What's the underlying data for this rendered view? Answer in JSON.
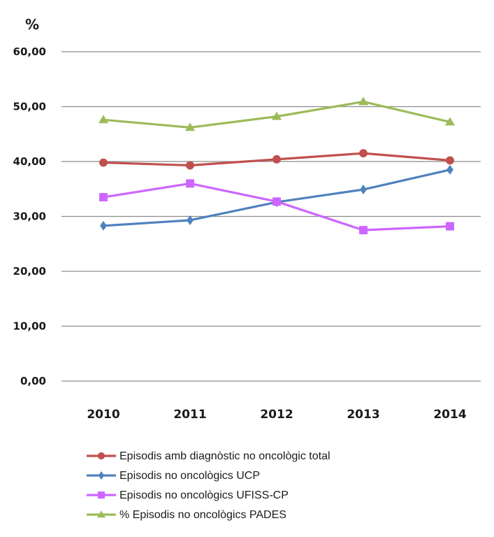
{
  "chart_data": {
    "type": "line",
    "ylabel": "%",
    "ylim": [
      0,
      60
    ],
    "y_ticks": [
      "0,00",
      "10,00",
      "20,00",
      "30,00",
      "40,00",
      "50,00",
      "60,00"
    ],
    "categories": [
      "2010",
      "2011",
      "2012",
      "2013",
      "2014"
    ],
    "grid": true,
    "legend_position": "bottom",
    "series": [
      {
        "name": "Episodis amb diagnòstic no oncològic total",
        "color": "#c0504d",
        "marker": "circle",
        "values": [
          39.8,
          39.3,
          40.4,
          41.5,
          40.2
        ]
      },
      {
        "name": "Episodis no oncològics UCP",
        "color": "#4f81bd",
        "marker": "diamond",
        "values": [
          28.3,
          29.3,
          32.6,
          34.9,
          38.5
        ]
      },
      {
        "name": "Episodis no oncològics UFISS-CP",
        "color": "#cc66ff",
        "marker": "square",
        "values": [
          33.5,
          36.0,
          32.7,
          27.5,
          28.2
        ]
      },
      {
        "name": "% Episodis no oncològics PADES",
        "color": "#9bbb59",
        "marker": "triangle",
        "values": [
          47.6,
          46.2,
          48.2,
          50.9,
          47.2
        ]
      }
    ]
  }
}
